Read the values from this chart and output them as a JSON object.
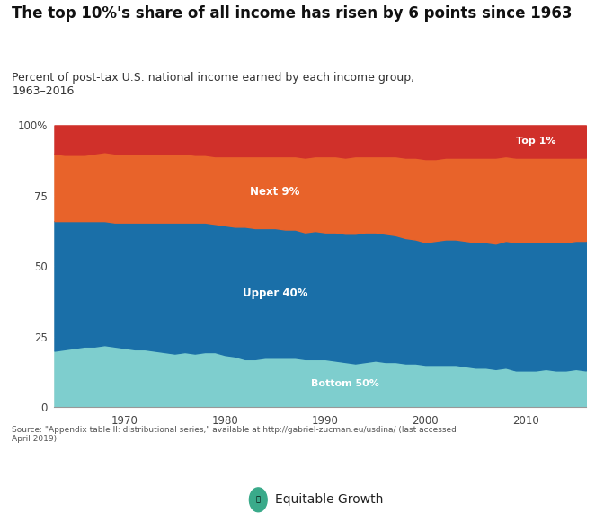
{
  "title": "The top 10%'s share of all income has risen by 6 points since 1963",
  "subtitle": "Percent of post-tax U.S. national income earned by each income group,\n1963–2016",
  "source": "Source: \"Appendix table II: distributional series,\" available at http://gabriel-zucman.eu/usdina/ (last accessed\nApril 2019).",
  "footer": "Equitable Growth",
  "years": [
    1963,
    1964,
    1965,
    1966,
    1967,
    1968,
    1969,
    1970,
    1971,
    1972,
    1973,
    1974,
    1975,
    1976,
    1977,
    1978,
    1979,
    1980,
    1981,
    1982,
    1983,
    1984,
    1985,
    1986,
    1987,
    1988,
    1989,
    1990,
    1991,
    1992,
    1993,
    1994,
    1995,
    1996,
    1997,
    1998,
    1999,
    2000,
    2001,
    2002,
    2003,
    2004,
    2005,
    2006,
    2007,
    2008,
    2009,
    2010,
    2011,
    2012,
    2013,
    2014,
    2015,
    2016
  ],
  "bottom50": [
    20,
    20.5,
    21,
    21.5,
    21.5,
    22,
    21.5,
    21,
    20.5,
    20.5,
    20,
    19.5,
    19,
    19.5,
    19,
    19.5,
    19.5,
    18.5,
    18,
    17,
    17,
    17.5,
    17.5,
    17.5,
    17.5,
    17,
    17,
    17,
    16.5,
    16,
    15.5,
    16,
    16.5,
    16,
    16,
    15.5,
    15.5,
    15,
    15,
    15,
    15,
    14.5,
    14,
    14,
    13.5,
    14,
    13,
    13,
    13,
    13.5,
    13,
    13,
    13.5,
    13
  ],
  "upper40": [
    46,
    45.5,
    45,
    44.5,
    44.5,
    44,
    44,
    44.5,
    45,
    45,
    45.5,
    46,
    46.5,
    46,
    46.5,
    46,
    45.5,
    46,
    46,
    47,
    46.5,
    46,
    46,
    45.5,
    45.5,
    45,
    45.5,
    45,
    45.5,
    45.5,
    46,
    46,
    45.5,
    45.5,
    45,
    44.5,
    44,
    43.5,
    44,
    44.5,
    44.5,
    44.5,
    44.5,
    44.5,
    44.5,
    45,
    45.5,
    45.5,
    45.5,
    45,
    45.5,
    45.5,
    45.5,
    46
  ],
  "next9": [
    24,
    23.5,
    23.5,
    23.5,
    24,
    24.5,
    24.5,
    24.5,
    24.5,
    24.5,
    24.5,
    24.5,
    24.5,
    24.5,
    24,
    24,
    24,
    24.5,
    25,
    25,
    25.5,
    25.5,
    25.5,
    26,
    26,
    26.5,
    26.5,
    27,
    27,
    27,
    27.5,
    27,
    27,
    27.5,
    28,
    28.5,
    29,
    29.5,
    29,
    29,
    29,
    29.5,
    30,
    30,
    30.5,
    30,
    30,
    30,
    30,
    30,
    30,
    30,
    29.5,
    29.5
  ],
  "top1": [
    10,
    10.5,
    10.5,
    10.5,
    10,
    9.5,
    10,
    10,
    10,
    10,
    10,
    10,
    10,
    10,
    10.5,
    10.5,
    11,
    11,
    11,
    11,
    11,
    11,
    11,
    11,
    11,
    11.5,
    11,
    11,
    11,
    11.5,
    11,
    11,
    11,
    11,
    11,
    11.5,
    11.5,
    12,
    12,
    11.5,
    11.5,
    11.5,
    11.5,
    11.5,
    11.5,
    11,
    11.5,
    11.5,
    11.5,
    11.5,
    11.5,
    11.5,
    11.5,
    11.5
  ],
  "color_bottom50": "#7ecece",
  "color_upper40": "#1a6fa8",
  "color_next9": "#e8632a",
  "color_top1": "#d0302a",
  "bg_color": "#f0f0eb",
  "title_fontsize": 12,
  "subtitle_fontsize": 9,
  "label_bottom50": "Bottom 50%",
  "label_upper40": "Upper 40%",
  "label_next9": "Next 9%",
  "label_top1": "Top 1%"
}
